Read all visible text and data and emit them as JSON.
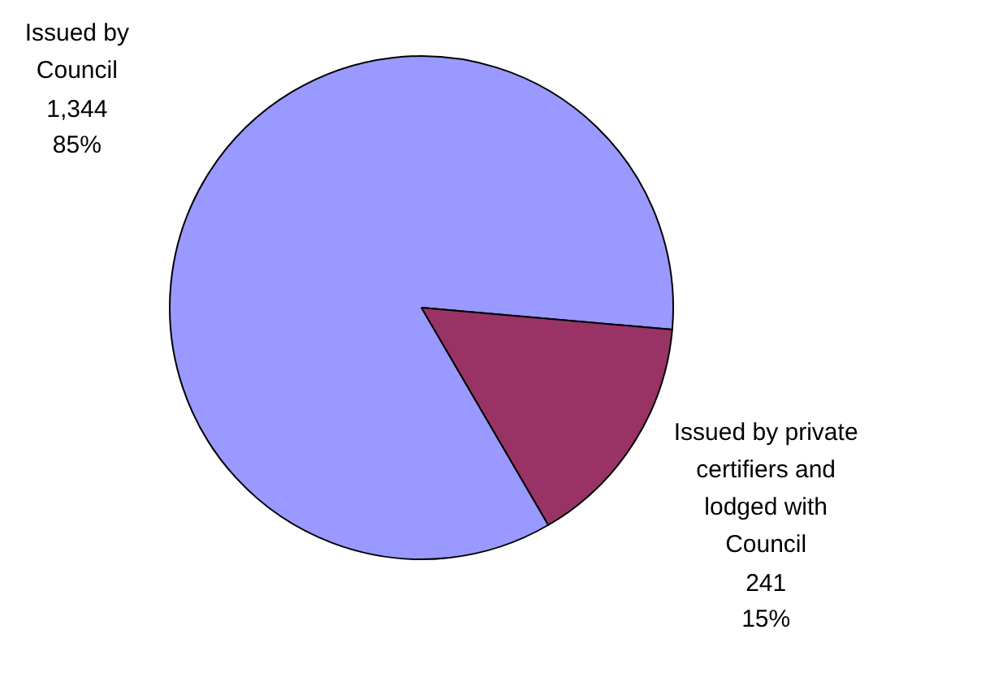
{
  "chart_data": {
    "type": "pie",
    "categories": [
      "Issued by\nCouncil",
      "Issued by private\ncertifiers and\nlodged with\nCouncil"
    ],
    "values": [
      1344,
      241
    ],
    "colors": [
      "#9999ff",
      "#993366"
    ],
    "value_labels": [
      "1,344\n85%",
      "241\n15%"
    ]
  }
}
